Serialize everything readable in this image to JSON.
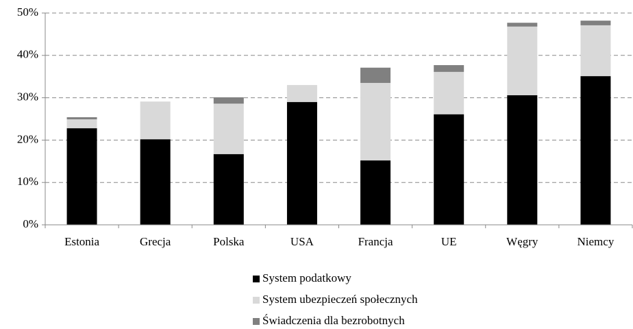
{
  "chart_data": {
    "type": "stacked_bar",
    "categories": [
      "Estonia",
      "Grecja",
      "Polska",
      "USA",
      "Francja",
      "UE",
      "Węgry",
      "Niemcy"
    ],
    "series": [
      {
        "name": "System podatkowy",
        "color": "#000000",
        "values": [
          22.8,
          20.2,
          16.7,
          29.0,
          15.2,
          26.1,
          30.6,
          35.1
        ]
      },
      {
        "name": "System ubezpieczeń społecznych",
        "color": "#d9d9d9",
        "values": [
          2.1,
          8.9,
          11.9,
          4.0,
          18.3,
          10.0,
          16.2,
          12.0
        ]
      },
      {
        "name": "Świadczenia dla bezrobotnych",
        "color": "#808080",
        "values": [
          0.5,
          0,
          1.5,
          0,
          3.6,
          1.6,
          0.9,
          1.1
        ]
      }
    ],
    "ylim": [
      0,
      50
    ],
    "yticks": [
      {
        "value": 0,
        "label": "0%"
      },
      {
        "value": 10,
        "label": "10%"
      },
      {
        "value": 20,
        "label": "20%"
      },
      {
        "value": 30,
        "label": "30%"
      },
      {
        "value": 40,
        "label": "40%"
      },
      {
        "value": 50,
        "label": "50%"
      }
    ],
    "grid": true
  }
}
